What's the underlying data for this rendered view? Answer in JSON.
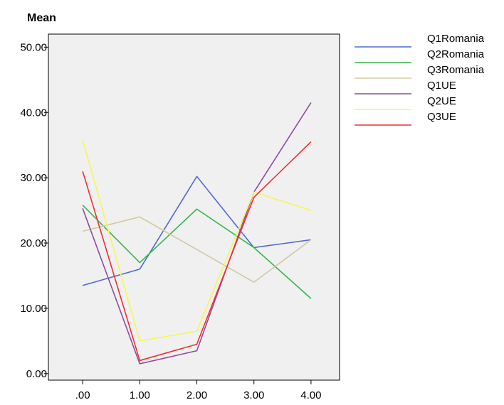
{
  "chart_data": {
    "type": "line",
    "title": "",
    "xlabel": "",
    "ylabel": "Mean",
    "x": [
      0,
      1,
      2,
      3,
      4
    ],
    "x_tick_labels": [
      ".00",
      "1.00",
      "2.00",
      "3.00",
      "4.00"
    ],
    "y_ticks": [
      0,
      10,
      20,
      30,
      40,
      50
    ],
    "y_tick_labels": [
      "0.00",
      "10.00",
      "20.00",
      "30.00",
      "40.00",
      "50.00"
    ],
    "xlim": [
      -0.6,
      4.5
    ],
    "ylim": [
      -1,
      52
    ],
    "grid": false,
    "legend_position": "right",
    "plot_background": "#f0f0f0",
    "series": [
      {
        "name": "Q1Romania",
        "color": "#4f6bd6",
        "values": [
          13.5,
          16,
          30.2,
          19.3,
          20.5
        ]
      },
      {
        "name": "Q2Romania",
        "color": "#33b84a",
        "values": [
          25.8,
          17,
          25.2,
          19.3,
          11.5
        ]
      },
      {
        "name": "Q3Romania",
        "color": "#d2c9a0",
        "values": [
          21.8,
          24,
          19,
          14,
          20.5
        ]
      },
      {
        "name": "Q1UE",
        "color": "#8e4c9e",
        "values": [
          25.3,
          1.5,
          3.5,
          27.8,
          41.5
        ]
      },
      {
        "name": "Q2UE",
        "color": "#f5f55a",
        "values": [
          35.8,
          5,
          6.5,
          27.8,
          25
        ]
      },
      {
        "name": "Q3UE",
        "color": "#f03030",
        "values": [
          31,
          2,
          4.5,
          27,
          35.5
        ]
      }
    ]
  }
}
